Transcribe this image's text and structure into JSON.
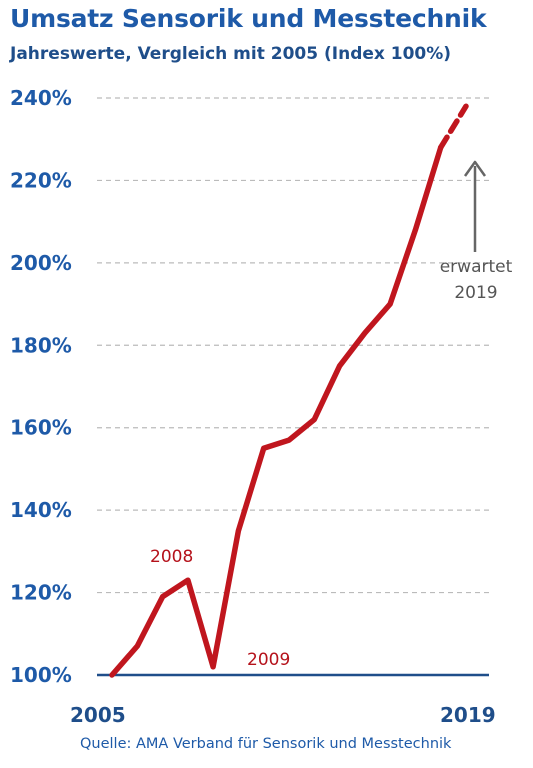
{
  "chart_data": {
    "type": "line",
    "title": "Umsatz Sensorik und Messtechnik",
    "subtitle": "Jahreswerte, Vergleich mit 2005 (Index 100%)",
    "source": "Quelle: AMA Verband für Sensorik und Messtechnik",
    "x": [
      2005,
      2006,
      2007,
      2008,
      2009,
      2010,
      2011,
      2012,
      2013,
      2014,
      2015,
      2016,
      2017,
      2018,
      2019
    ],
    "series": [
      {
        "values": [
          100,
          107,
          119,
          123,
          102,
          135,
          155,
          157,
          162,
          175,
          183,
          190,
          208,
          228,
          238
        ],
        "color": "#c0161e",
        "last_point_expected": true
      }
    ],
    "ylim": [
      100,
      240
    ],
    "yticks": [
      100,
      120,
      140,
      160,
      180,
      200,
      220,
      240
    ],
    "ytick_labels": [
      "100%",
      "120%",
      "140%",
      "160%",
      "180%",
      "200%",
      "220%",
      "240%"
    ],
    "xtick_labels": [
      "2005",
      "2019"
    ],
    "grid": true,
    "annotations": {
      "y2008": "2008",
      "y2009": "2009",
      "expected_line1": "erwartet",
      "expected_line2": "2019"
    }
  }
}
